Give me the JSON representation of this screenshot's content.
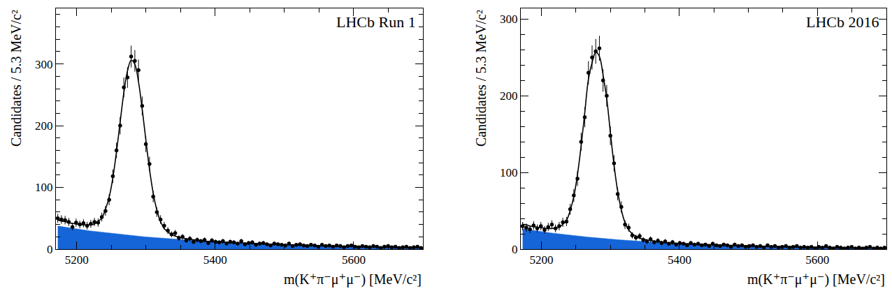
{
  "chart_data": [
    {
      "type": "scatter",
      "title": "LHCb Run 1",
      "x_label": "m(K⁺π⁻μ⁺μ⁻) [MeV/c²]",
      "y_label": "Candidates / 5.3 MeV/c²",
      "xlim": [
        5170,
        5700
      ],
      "xticks": [
        5200,
        5400,
        5600
      ],
      "ylim": [
        0,
        390
      ],
      "yticks": [
        0,
        100,
        200,
        300
      ],
      "x": [
        5172.65,
        5177.95,
        5183.25,
        5188.55,
        5193.85,
        5199.15,
        5204.45,
        5209.75,
        5215.05,
        5220.35,
        5225.65,
        5230.95,
        5236.25,
        5241.55,
        5246.85,
        5252.15,
        5257.45,
        5262.75,
        5268.05,
        5273.35,
        5278.65,
        5283.95,
        5289.25,
        5294.55,
        5299.85,
        5305.15,
        5310.45,
        5315.75,
        5321.05,
        5326.35,
        5331.65,
        5336.95,
        5342.25,
        5347.55,
        5352.85,
        5358.15,
        5363.45,
        5368.75,
        5374.05,
        5379.35,
        5384.65,
        5389.95,
        5395.25,
        5400.55,
        5405.85,
        5411.15,
        5416.45,
        5421.75,
        5427.05,
        5432.35,
        5437.65,
        5442.95,
        5448.25,
        5453.55,
        5458.85,
        5464.15,
        5469.45,
        5474.75,
        5480.05,
        5485.35,
        5490.65,
        5495.95,
        5501.25,
        5506.55,
        5511.85,
        5517.15,
        5522.45,
        5527.75,
        5533.05,
        5538.35,
        5543.65,
        5548.95,
        5554.25,
        5559.55,
        5564.85,
        5570.15,
        5575.45,
        5580.75,
        5586.05,
        5591.35,
        5596.65,
        5601.95,
        5607.25,
        5612.55,
        5617.85,
        5623.15,
        5628.45,
        5633.75,
        5639.05,
        5644.35,
        5649.65,
        5654.95,
        5660.25,
        5665.55,
        5670.85,
        5676.15,
        5681.45,
        5686.75,
        5692.05,
        5697.35
      ],
      "series": [
        {
          "type": "area",
          "color": "#1565d8",
          "values": [
            37.5,
            36.5,
            35.6,
            34.6,
            33.7,
            32.8,
            32.0,
            31.1,
            30.3,
            29.5,
            28.8,
            28.0,
            27.3,
            26.6,
            25.9,
            25.2,
            24.6,
            23.9,
            23.3,
            22.7,
            22.1,
            21.5,
            21.0,
            20.4,
            19.9,
            19.4,
            18.9,
            18.4,
            17.9,
            17.4,
            17.0,
            16.5,
            16.1,
            15.7,
            15.3,
            14.9,
            14.5,
            14.1,
            13.7,
            13.4,
            13.0,
            12.7,
            12.4,
            12.0,
            11.7,
            11.4,
            11.1,
            10.8,
            10.6,
            10.3,
            10.0,
            9.8,
            9.5,
            9.3,
            9.0,
            8.8,
            8.6,
            8.3,
            8.1,
            7.9,
            7.7,
            7.5,
            7.3,
            7.1,
            6.9,
            6.8,
            6.6,
            6.4,
            6.2,
            6.1,
            5.9,
            5.8,
            5.6,
            5.5,
            5.3,
            5.2,
            5.0,
            4.9,
            4.8,
            4.6,
            4.5,
            4.4,
            4.3,
            4.2,
            4.1,
            4.0,
            3.9,
            3.8,
            3.7,
            3.6,
            3.5,
            3.4,
            3.3,
            3.2,
            3.1,
            3.0,
            2.9,
            2.9,
            2.8,
            2.7
          ]
        },
        {
          "type": "line",
          "color": "#000000",
          "line_style": "solid",
          "values": [
            47.5,
            45.5,
            44.6,
            42.6,
            41.7,
            40.8,
            40.0,
            39.1,
            39.3,
            39.5,
            40.8,
            45.0,
            50.3,
            64.6,
            83.9,
            115.2,
            157.6,
            205.9,
            253.3,
            288.7,
            306.1,
            299.5,
            271.0,
            227.4,
            176.9,
            129.4,
            90.9,
            63.4,
            44.9,
            33.4,
            28.0,
            23.5,
            21.1,
            19.7,
            18.3,
            16.9,
            16.5,
            15.1,
            14.7,
            13.4,
            13.0,
            12.7,
            12.4,
            12.0,
            11.7,
            11.4,
            11.1,
            10.8,
            10.6,
            10.3,
            10.0,
            9.8,
            9.5,
            9.3,
            9.0,
            8.8,
            8.6,
            8.3,
            8.1,
            7.9,
            7.7,
            7.5,
            7.3,
            7.1,
            6.9,
            6.8,
            6.6,
            6.4,
            6.2,
            6.1,
            5.9,
            5.8,
            5.6,
            5.5,
            5.3,
            5.2,
            5.0,
            4.9,
            4.8,
            4.6,
            4.5,
            4.4,
            4.3,
            4.2,
            4.1,
            4.0,
            3.9,
            3.8,
            3.7,
            3.6,
            3.5,
            3.4,
            3.3,
            3.2,
            3.1,
            3.0,
            2.9,
            2.9,
            2.8,
            2.7
          ]
        },
        {
          "type": "scatter",
          "color": "#000000",
          "marker": "circle",
          "values": [
            50,
            48,
            47,
            44,
            36,
            43,
            40,
            42,
            38,
            41,
            44,
            43,
            52,
            62,
            80,
            118,
            160,
            200,
            262,
            278,
            312,
            305,
            290,
            232,
            170,
            138,
            85,
            60,
            48,
            38,
            30,
            24,
            26,
            18,
            20,
            14,
            17,
            12,
            15,
            13,
            15,
            10,
            14,
            12,
            11,
            13,
            9,
            12,
            11,
            9,
            13,
            8,
            10,
            11,
            7,
            9,
            10,
            8,
            6,
            9,
            8,
            7,
            6,
            9,
            5,
            7,
            8,
            6,
            5,
            7,
            6,
            4,
            7,
            5,
            6,
            4,
            6,
            5,
            3,
            5,
            6,
            4,
            3,
            5,
            4,
            3,
            5,
            4,
            2,
            4,
            5,
            3,
            4,
            2,
            3,
            4,
            2,
            3,
            4,
            2
          ],
          "errors": [
            7.1,
            6.9,
            6.9,
            6.6,
            6.0,
            6.6,
            6.3,
            6.5,
            6.2,
            6.4,
            6.6,
            6.6,
            7.2,
            7.9,
            8.9,
            10.9,
            12.6,
            14.1,
            16.2,
            16.7,
            17.7,
            17.5,
            17.0,
            15.2,
            13.0,
            11.7,
            9.2,
            7.7,
            6.9,
            6.2,
            5.5,
            4.9,
            5.1,
            4.2,
            4.5,
            3.7,
            4.1,
            3.5,
            3.9,
            3.6,
            3.9,
            3.2,
            3.7,
            3.5,
            3.3,
            3.6,
            3.0,
            3.5,
            3.3,
            3.0,
            3.6,
            2.8,
            3.2,
            3.3,
            2.6,
            3.0,
            3.2,
            2.8,
            2.4,
            3.0,
            2.8,
            2.6,
            2.4,
            3.0,
            2.2,
            2.6,
            2.8,
            2.4,
            2.2,
            2.6,
            2.4,
            2.0,
            2.6,
            2.2,
            2.4,
            2.0,
            2.4,
            2.2,
            1.7,
            2.2,
            2.4,
            2.0,
            1.7,
            2.2,
            2.0,
            1.7,
            2.2,
            2.0,
            1.4,
            2.0,
            2.2,
            1.7,
            2.0,
            1.4,
            1.7,
            2.0,
            1.4,
            1.7,
            2.0,
            1.4
          ]
        }
      ]
    },
    {
      "type": "scatter",
      "title": "LHCb 2016",
      "x_label": "m(K⁺π⁻μ⁺μ⁻) [MeV/c²]",
      "y_label": "Candidates / 5.3 MeV/c²",
      "xlim": [
        5170,
        5700
      ],
      "xticks": [
        5200,
        5400,
        5600
      ],
      "ylim": [
        0,
        314
      ],
      "yticks": [
        0,
        100,
        200,
        300
      ],
      "x": [
        5172.65,
        5177.95,
        5183.25,
        5188.55,
        5193.85,
        5199.15,
        5204.45,
        5209.75,
        5215.05,
        5220.35,
        5225.65,
        5230.95,
        5236.25,
        5241.55,
        5246.85,
        5252.15,
        5257.45,
        5262.75,
        5268.05,
        5273.35,
        5278.65,
        5283.95,
        5289.25,
        5294.55,
        5299.85,
        5305.15,
        5310.45,
        5315.75,
        5321.05,
        5326.35,
        5331.65,
        5336.95,
        5342.25,
        5347.55,
        5352.85,
        5358.15,
        5363.45,
        5368.75,
        5374.05,
        5379.35,
        5384.65,
        5389.95,
        5395.25,
        5400.55,
        5405.85,
        5411.15,
        5416.45,
        5421.75,
        5427.05,
        5432.35,
        5437.65,
        5442.95,
        5448.25,
        5453.55,
        5458.85,
        5464.15,
        5469.45,
        5474.75,
        5480.05,
        5485.35,
        5490.65,
        5495.95,
        5501.25,
        5506.55,
        5511.85,
        5517.15,
        5522.45,
        5527.75,
        5533.05,
        5538.35,
        5543.65,
        5548.95,
        5554.25,
        5559.55,
        5564.85,
        5570.15,
        5575.45,
        5580.75,
        5586.05,
        5591.35,
        5596.65,
        5601.95,
        5607.25,
        5612.55,
        5617.85,
        5623.15,
        5628.45,
        5633.75,
        5639.05,
        5644.35,
        5649.65,
        5654.95,
        5660.25,
        5665.55,
        5670.85,
        5676.15,
        5681.45,
        5686.75,
        5692.05,
        5697.35
      ],
      "series": [
        {
          "type": "area",
          "color": "#1565d8",
          "values": [
            26.6,
            25.8,
            25.1,
            24.4,
            23.7,
            23.0,
            22.3,
            21.7,
            21.0,
            20.4,
            19.8,
            19.3,
            18.7,
            18.2,
            17.6,
            17.1,
            16.6,
            16.2,
            15.7,
            15.2,
            14.8,
            14.4,
            13.9,
            13.5,
            13.1,
            12.8,
            12.4,
            12.0,
            11.7,
            11.4,
            11.0,
            10.7,
            10.4,
            10.1,
            9.8,
            9.5,
            9.2,
            9.0,
            8.7,
            8.5,
            8.2,
            8.0,
            7.7,
            7.5,
            7.3,
            7.1,
            6.9,
            6.7,
            6.5,
            6.3,
            6.1,
            5.9,
            5.8,
            5.6,
            5.4,
            5.3,
            5.1,
            5.0,
            4.8,
            4.7,
            4.6,
            4.4,
            4.3,
            4.2,
            4.1,
            3.9,
            3.8,
            3.7,
            3.6,
            3.5,
            3.4,
            3.3,
            3.2,
            3.1,
            3.0,
            2.9,
            2.8,
            2.7,
            2.7,
            2.6,
            2.5,
            2.4,
            2.4,
            2.3,
            2.2,
            2.2,
            2.1,
            2.0,
            2.0,
            1.9,
            1.9,
            1.8,
            1.8,
            1.7,
            1.7,
            1.6,
            1.6,
            1.5,
            1.5,
            1.4
          ]
        },
        {
          "type": "line",
          "color": "#000000",
          "line_style": "solid",
          "values": [
            32.6,
            31.8,
            30.1,
            29.4,
            28.7,
            28.0,
            27.3,
            26.7,
            27.0,
            27.4,
            28.8,
            32.3,
            37.7,
            50.2,
            68.6,
            97.1,
            134.6,
            178.2,
            221.7,
            243.2,
            256.8,
            251.4,
            226.9,
            196.5,
            152.1,
            109.8,
            75.4,
            51.0,
            34.7,
            25.4,
            20.0,
            16.7,
            14.4,
            13.1,
            11.8,
            11.5,
            10.2,
            10.0,
            9.7,
            8.5,
            8.2,
            8.0,
            7.7,
            7.5,
            7.3,
            7.1,
            6.9,
            6.7,
            6.5,
            6.3,
            6.1,
            5.9,
            5.8,
            5.6,
            5.4,
            5.3,
            5.1,
            5.0,
            4.8,
            4.7,
            4.6,
            4.4,
            4.3,
            4.2,
            4.1,
            3.9,
            3.8,
            3.7,
            3.6,
            3.5,
            3.4,
            3.3,
            3.2,
            3.1,
            3.0,
            2.9,
            2.8,
            2.7,
            2.7,
            2.6,
            2.5,
            2.4,
            2.4,
            2.3,
            2.2,
            2.2,
            2.1,
            2.0,
            2.0,
            1.9,
            1.9,
            1.8,
            1.8,
            1.7,
            1.7,
            1.6,
            1.6,
            1.5,
            1.5,
            1.4
          ]
        },
        {
          "type": "scatter",
          "color": "#000000",
          "marker": "circle",
          "values": [
            30,
            28,
            26,
            31,
            27,
            30,
            25,
            29,
            32,
            27,
            30,
            35,
            36,
            52,
            70,
            92,
            140,
            172,
            230,
            250,
            258,
            262,
            220,
            200,
            148,
            112,
            72,
            55,
            32,
            28,
            18,
            15,
            17,
            12,
            10,
            13,
            9,
            11,
            8,
            10,
            7,
            9,
            6,
            8,
            7,
            5,
            8,
            6,
            7,
            5,
            6,
            4,
            7,
            5,
            4,
            6,
            5,
            3,
            6,
            4,
            5,
            3,
            4,
            5,
            3,
            4,
            2,
            5,
            3,
            4,
            2,
            3,
            4,
            2,
            3,
            4,
            2,
            3,
            2,
            3,
            1,
            3,
            2,
            4,
            2,
            1,
            3,
            2,
            1,
            2,
            3,
            1,
            2,
            1,
            2,
            3,
            1,
            2,
            1,
            2
          ],
          "errors": [
            5.5,
            5.3,
            5.1,
            5.6,
            5.2,
            5.5,
            5.0,
            5.4,
            5.7,
            5.2,
            5.5,
            5.9,
            6.0,
            7.2,
            8.4,
            9.6,
            11.8,
            13.1,
            15.2,
            15.8,
            16.1,
            16.2,
            14.8,
            14.1,
            12.2,
            10.6,
            8.5,
            7.4,
            5.7,
            5.3,
            4.2,
            3.9,
            4.1,
            3.5,
            3.2,
            3.6,
            3.0,
            3.3,
            2.8,
            3.2,
            2.6,
            3.0,
            2.4,
            2.8,
            2.6,
            2.2,
            2.8,
            2.4,
            2.6,
            2.2,
            2.4,
            2.0,
            2.6,
            2.2,
            2.0,
            2.4,
            2.2,
            1.7,
            2.4,
            2.0,
            2.2,
            1.7,
            2.0,
            2.2,
            1.7,
            2.0,
            1.4,
            2.2,
            1.7,
            2.0,
            1.4,
            1.7,
            2.0,
            1.4,
            1.7,
            2.0,
            1.4,
            1.7,
            1.4,
            1.7,
            1.0,
            1.7,
            1.4,
            2.0,
            1.4,
            1.0,
            1.7,
            1.4,
            1.0,
            1.4,
            1.7,
            1.0,
            1.4,
            1.0,
            1.4,
            1.7,
            1.0,
            1.4,
            1.0,
            1.4
          ]
        }
      ]
    }
  ]
}
